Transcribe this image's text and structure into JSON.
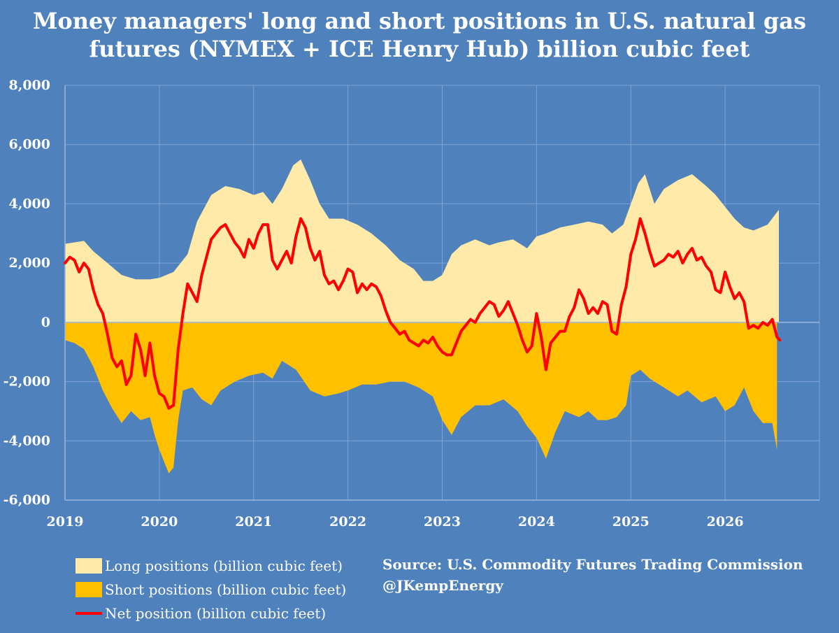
{
  "chart_data": {
    "type": "area",
    "title_lines": [
      "Money managers' long and short positions in U.S. natural gas",
      "futures (NYMEX + ICE Henry Hub) billion cubic feet"
    ],
    "xlabel": "",
    "ylabel": "",
    "ylim": [
      -6000,
      8000
    ],
    "xlim": [
      2019,
      2027
    ],
    "x_ticks": [
      "2019",
      "2020",
      "2021",
      "2022",
      "2023",
      "2024",
      "2025",
      "2026"
    ],
    "y_ticks": [
      "8,000",
      "6,000",
      "4,000",
      "2,000",
      "0",
      "-2,000",
      "-4,000",
      "-6,000"
    ],
    "grid": "horizontal",
    "legend_position": "bottom-left",
    "series": [
      {
        "name": "Long positions (billion cubic feet)",
        "color": "#ffeaaa",
        "points": [
          [
            2019.0,
            2650
          ],
          [
            2019.1,
            2700
          ],
          [
            2019.2,
            2750
          ],
          [
            2019.3,
            2400
          ],
          [
            2019.45,
            2000
          ],
          [
            2019.6,
            1600
          ],
          [
            2019.75,
            1450
          ],
          [
            2019.9,
            1450
          ],
          [
            2020.0,
            1500
          ],
          [
            2020.15,
            1700
          ],
          [
            2020.3,
            2300
          ],
          [
            2020.4,
            3400
          ],
          [
            2020.55,
            4300
          ],
          [
            2020.7,
            4600
          ],
          [
            2020.85,
            4500
          ],
          [
            2021.0,
            4300
          ],
          [
            2021.1,
            4400
          ],
          [
            2021.2,
            4000
          ],
          [
            2021.3,
            4500
          ],
          [
            2021.42,
            5300
          ],
          [
            2021.5,
            5500
          ],
          [
            2021.6,
            4800
          ],
          [
            2021.7,
            4000
          ],
          [
            2021.8,
            3500
          ],
          [
            2021.95,
            3500
          ],
          [
            2022.1,
            3300
          ],
          [
            2022.25,
            3000
          ],
          [
            2022.4,
            2600
          ],
          [
            2022.55,
            2100
          ],
          [
            2022.7,
            1800
          ],
          [
            2022.8,
            1400
          ],
          [
            2022.9,
            1400
          ],
          [
            2023.0,
            1600
          ],
          [
            2023.1,
            2300
          ],
          [
            2023.2,
            2600
          ],
          [
            2023.35,
            2800
          ],
          [
            2023.5,
            2600
          ],
          [
            2023.6,
            2700
          ],
          [
            2023.75,
            2800
          ],
          [
            2023.9,
            2500
          ],
          [
            2024.0,
            2900
          ],
          [
            2024.1,
            3000
          ],
          [
            2024.25,
            3200
          ],
          [
            2024.4,
            3300
          ],
          [
            2024.55,
            3400
          ],
          [
            2024.7,
            3300
          ],
          [
            2024.8,
            3000
          ],
          [
            2024.92,
            3300
          ],
          [
            2025.0,
            4000
          ],
          [
            2025.08,
            4700
          ],
          [
            2025.15,
            5000
          ],
          [
            2025.25,
            4000
          ],
          [
            2025.35,
            4500
          ],
          [
            2025.5,
            4800
          ],
          [
            2025.65,
            5000
          ],
          [
            2025.8,
            4600
          ],
          [
            2025.9,
            4300
          ],
          [
            2026.0,
            3900
          ],
          [
            2026.1,
            3500
          ],
          [
            2026.2,
            3200
          ],
          [
            2026.3,
            3100
          ],
          [
            2026.45,
            3300
          ],
          [
            2026.57,
            3800
          ]
        ]
      },
      {
        "name": "Short positions (billion cubic feet)",
        "color": "#ffc000",
        "points": [
          [
            2019.0,
            -600
          ],
          [
            2019.1,
            -700
          ],
          [
            2019.2,
            -900
          ],
          [
            2019.3,
            -1500
          ],
          [
            2019.4,
            -2300
          ],
          [
            2019.5,
            -2900
          ],
          [
            2019.6,
            -3400
          ],
          [
            2019.7,
            -3000
          ],
          [
            2019.8,
            -3300
          ],
          [
            2019.9,
            -3200
          ],
          [
            2019.95,
            -3800
          ],
          [
            2020.0,
            -4300
          ],
          [
            2020.05,
            -4700
          ],
          [
            2020.1,
            -5100
          ],
          [
            2020.15,
            -4900
          ],
          [
            2020.2,
            -3300
          ],
          [
            2020.25,
            -2300
          ],
          [
            2020.35,
            -2200
          ],
          [
            2020.45,
            -2600
          ],
          [
            2020.55,
            -2800
          ],
          [
            2020.65,
            -2300
          ],
          [
            2020.8,
            -2000
          ],
          [
            2020.95,
            -1800
          ],
          [
            2021.1,
            -1700
          ],
          [
            2021.2,
            -1900
          ],
          [
            2021.3,
            -1300
          ],
          [
            2021.45,
            -1600
          ],
          [
            2021.6,
            -2300
          ],
          [
            2021.75,
            -2500
          ],
          [
            2021.9,
            -2400
          ],
          [
            2022.0,
            -2300
          ],
          [
            2022.15,
            -2100
          ],
          [
            2022.3,
            -2100
          ],
          [
            2022.45,
            -2000
          ],
          [
            2022.6,
            -2000
          ],
          [
            2022.75,
            -2200
          ],
          [
            2022.9,
            -2500
          ],
          [
            2023.0,
            -3300
          ],
          [
            2023.1,
            -3800
          ],
          [
            2023.2,
            -3200
          ],
          [
            2023.35,
            -2800
          ],
          [
            2023.5,
            -2800
          ],
          [
            2023.65,
            -2600
          ],
          [
            2023.8,
            -3000
          ],
          [
            2023.9,
            -3500
          ],
          [
            2024.0,
            -3900
          ],
          [
            2024.1,
            -4600
          ],
          [
            2024.2,
            -3700
          ],
          [
            2024.3,
            -3000
          ],
          [
            2024.45,
            -3200
          ],
          [
            2024.55,
            -3000
          ],
          [
            2024.65,
            -3300
          ],
          [
            2024.75,
            -3300
          ],
          [
            2024.85,
            -3200
          ],
          [
            2024.95,
            -2800
          ],
          [
            2025.0,
            -1800
          ],
          [
            2025.1,
            -1600
          ],
          [
            2025.2,
            -1900
          ],
          [
            2025.35,
            -2200
          ],
          [
            2025.5,
            -2500
          ],
          [
            2025.6,
            -2300
          ],
          [
            2025.75,
            -2700
          ],
          [
            2025.9,
            -2500
          ],
          [
            2026.0,
            -3000
          ],
          [
            2026.1,
            -2800
          ],
          [
            2026.2,
            -2200
          ],
          [
            2026.3,
            -3000
          ],
          [
            2026.4,
            -3400
          ],
          [
            2026.5,
            -3400
          ],
          [
            2026.55,
            -4300
          ]
        ]
      },
      {
        "name": "Net position (billion cubic feet)",
        "color": "#ff0000",
        "points": [
          [
            2019.0,
            2000
          ],
          [
            2019.05,
            2200
          ],
          [
            2019.1,
            2100
          ],
          [
            2019.15,
            1700
          ],
          [
            2019.2,
            2000
          ],
          [
            2019.25,
            1800
          ],
          [
            2019.3,
            1100
          ],
          [
            2019.35,
            600
          ],
          [
            2019.4,
            300
          ],
          [
            2019.45,
            -400
          ],
          [
            2019.5,
            -1200
          ],
          [
            2019.55,
            -1500
          ],
          [
            2019.6,
            -1300
          ],
          [
            2019.65,
            -2100
          ],
          [
            2019.7,
            -1800
          ],
          [
            2019.75,
            -400
          ],
          [
            2019.8,
            -900
          ],
          [
            2019.85,
            -1800
          ],
          [
            2019.9,
            -700
          ],
          [
            2019.95,
            -1800
          ],
          [
            2020.0,
            -2400
          ],
          [
            2020.05,
            -2500
          ],
          [
            2020.1,
            -2900
          ],
          [
            2020.15,
            -2800
          ],
          [
            2020.2,
            -900
          ],
          [
            2020.25,
            300
          ],
          [
            2020.3,
            1300
          ],
          [
            2020.35,
            1000
          ],
          [
            2020.4,
            700
          ],
          [
            2020.45,
            1600
          ],
          [
            2020.5,
            2200
          ],
          [
            2020.55,
            2800
          ],
          [
            2020.6,
            3000
          ],
          [
            2020.65,
            3200
          ],
          [
            2020.7,
            3300
          ],
          [
            2020.75,
            3000
          ],
          [
            2020.8,
            2700
          ],
          [
            2020.85,
            2500
          ],
          [
            2020.9,
            2200
          ],
          [
            2020.95,
            2800
          ],
          [
            2021.0,
            2500
          ],
          [
            2021.05,
            3000
          ],
          [
            2021.1,
            3300
          ],
          [
            2021.15,
            3300
          ],
          [
            2021.2,
            2100
          ],
          [
            2021.25,
            1800
          ],
          [
            2021.3,
            2100
          ],
          [
            2021.35,
            2400
          ],
          [
            2021.4,
            2000
          ],
          [
            2021.45,
            2900
          ],
          [
            2021.5,
            3500
          ],
          [
            2021.55,
            3200
          ],
          [
            2021.6,
            2500
          ],
          [
            2021.65,
            2100
          ],
          [
            2021.7,
            2400
          ],
          [
            2021.75,
            1600
          ],
          [
            2021.8,
            1300
          ],
          [
            2021.85,
            1400
          ],
          [
            2021.9,
            1100
          ],
          [
            2021.95,
            1400
          ],
          [
            2022.0,
            1800
          ],
          [
            2022.05,
            1700
          ],
          [
            2022.1,
            1000
          ],
          [
            2022.15,
            1300
          ],
          [
            2022.2,
            1100
          ],
          [
            2022.25,
            1300
          ],
          [
            2022.3,
            1200
          ],
          [
            2022.35,
            900
          ],
          [
            2022.4,
            400
          ],
          [
            2022.45,
            0
          ],
          [
            2022.5,
            -200
          ],
          [
            2022.55,
            -400
          ],
          [
            2022.6,
            -300
          ],
          [
            2022.65,
            -600
          ],
          [
            2022.7,
            -700
          ],
          [
            2022.75,
            -800
          ],
          [
            2022.8,
            -600
          ],
          [
            2022.85,
            -700
          ],
          [
            2022.9,
            -500
          ],
          [
            2022.95,
            -800
          ],
          [
            2023.0,
            -1000
          ],
          [
            2023.05,
            -1100
          ],
          [
            2023.1,
            -1100
          ],
          [
            2023.15,
            -700
          ],
          [
            2023.2,
            -300
          ],
          [
            2023.25,
            -100
          ],
          [
            2023.3,
            100
          ],
          [
            2023.35,
            0
          ],
          [
            2023.4,
            300
          ],
          [
            2023.45,
            500
          ],
          [
            2023.5,
            700
          ],
          [
            2023.55,
            600
          ],
          [
            2023.6,
            200
          ],
          [
            2023.65,
            400
          ],
          [
            2023.7,
            700
          ],
          [
            2023.75,
            300
          ],
          [
            2023.8,
            -100
          ],
          [
            2023.85,
            -600
          ],
          [
            2023.9,
            -1000
          ],
          [
            2023.95,
            -800
          ],
          [
            2024.0,
            300
          ],
          [
            2024.05,
            -500
          ],
          [
            2024.1,
            -1600
          ],
          [
            2024.15,
            -700
          ],
          [
            2024.2,
            -500
          ],
          [
            2024.25,
            -300
          ],
          [
            2024.3,
            -300
          ],
          [
            2024.35,
            200
          ],
          [
            2024.4,
            500
          ],
          [
            2024.45,
            1100
          ],
          [
            2024.5,
            800
          ],
          [
            2024.55,
            300
          ],
          [
            2024.6,
            500
          ],
          [
            2024.65,
            300
          ],
          [
            2024.7,
            700
          ],
          [
            2024.75,
            600
          ],
          [
            2024.8,
            -300
          ],
          [
            2024.85,
            -400
          ],
          [
            2024.9,
            600
          ],
          [
            2024.95,
            1200
          ],
          [
            2025.0,
            2300
          ],
          [
            2025.05,
            2800
          ],
          [
            2025.1,
            3500
          ],
          [
            2025.15,
            3000
          ],
          [
            2025.2,
            2400
          ],
          [
            2025.25,
            1900
          ],
          [
            2025.3,
            2000
          ],
          [
            2025.35,
            2100
          ],
          [
            2025.4,
            2300
          ],
          [
            2025.45,
            2200
          ],
          [
            2025.5,
            2400
          ],
          [
            2025.55,
            2000
          ],
          [
            2025.6,
            2300
          ],
          [
            2025.65,
            2500
          ],
          [
            2025.7,
            2100
          ],
          [
            2025.75,
            2200
          ],
          [
            2025.8,
            1900
          ],
          [
            2025.85,
            1700
          ],
          [
            2025.9,
            1100
          ],
          [
            2025.95,
            1000
          ],
          [
            2026.0,
            1700
          ],
          [
            2026.05,
            1200
          ],
          [
            2026.1,
            800
          ],
          [
            2026.15,
            1000
          ],
          [
            2026.2,
            700
          ],
          [
            2026.25,
            -200
          ],
          [
            2026.3,
            -100
          ],
          [
            2026.35,
            -200
          ],
          [
            2026.4,
            0
          ],
          [
            2026.45,
            -100
          ],
          [
            2026.5,
            100
          ],
          [
            2026.55,
            -500
          ],
          [
            2026.58,
            -600
          ]
        ]
      }
    ]
  },
  "legend": {
    "long": "Long positions (billion cubic feet)",
    "short": "Short positions (billion cubic feet)",
    "net": "Net position (billion cubic feet)"
  },
  "source": {
    "line1": "Source: U.S. Commodity Futures Trading Commission",
    "line2": "@JKempEnergy"
  }
}
